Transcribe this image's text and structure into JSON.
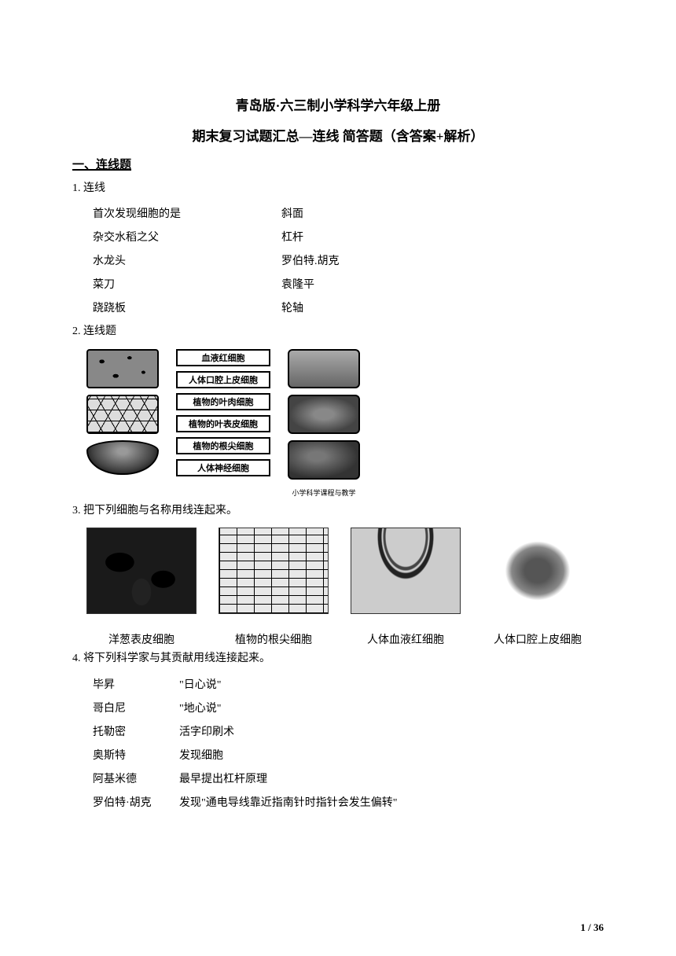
{
  "header": {
    "title_line1": "青岛版·六三制小学科学六年级上册",
    "title_line2": "期末复习试题汇总—连线 简答题（含答案+解析）"
  },
  "section1": {
    "heading": "一、连线题"
  },
  "q1": {
    "number": "1.",
    "prompt": "连线",
    "pairs": [
      {
        "left": "首次发现细胞的是",
        "right": "斜面"
      },
      {
        "left": "杂交水稻之父",
        "right": "杠杆"
      },
      {
        "left": "水龙头",
        "right": "罗伯特.胡克"
      },
      {
        "left": "菜刀",
        "right": "袁隆平"
      },
      {
        "left": "跷跷板",
        "right": "轮轴"
      }
    ]
  },
  "q2": {
    "number": "2.",
    "prompt": "连线题",
    "labels": [
      "血液红细胞",
      "人体口腔上皮细胞",
      "植物的叶肉细胞",
      "植物的叶表皮细胞",
      "植物的根尖细胞",
      "人体神经细胞"
    ],
    "caption_right": "小学科学课程与教学"
  },
  "q3": {
    "number": "3.",
    "prompt": "把下列细胞与名称用线连起来。",
    "items": [
      "洋葱表皮细胞",
      "植物的根尖细胞",
      "人体血液红细胞",
      "人体口腔上皮细胞"
    ]
  },
  "q4": {
    "number": "4.",
    "prompt": "将下列科学家与其贡献用线连接起来。",
    "pairs": [
      {
        "left": "毕昇",
        "right": "\"日心说\""
      },
      {
        "left": "哥白尼",
        "right": "\"地心说\""
      },
      {
        "left": "托勒密",
        "right": "活字印刷术"
      },
      {
        "left": "奥斯特",
        "right": "发现细胞"
      },
      {
        "left": "阿基米德",
        "right": "最早提出杠杆原理"
      },
      {
        "left": "罗伯特·胡克",
        "right": "发现\"通电导线靠近指南针时指针会发生偏转\""
      }
    ]
  },
  "footer": {
    "page": "1 / 36"
  }
}
